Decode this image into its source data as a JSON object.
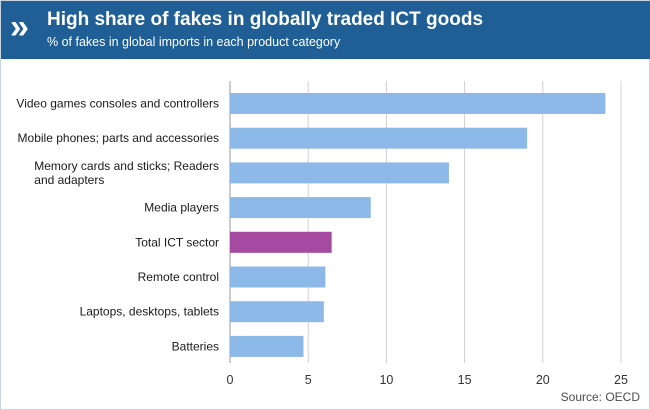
{
  "header": {
    "logo_glyph": "»",
    "title": "High share of fakes in globally traded ICT goods",
    "subtitle": "% of fakes in global imports in each product category"
  },
  "source": "Source: OECD",
  "colors": {
    "header_bg": "#1f5f96",
    "bar": "#8db9e8",
    "highlight_bar": "#a44aa0",
    "grid": "#d0d0d0"
  },
  "chart_data": {
    "type": "bar",
    "orientation": "horizontal",
    "categories": [
      "Video games consoles and controllers",
      "Mobile phones; parts and accessories",
      "Memory cards and sticks; Readers and adapters",
      "Media players",
      "Total ICT sector",
      "Remote control",
      "Laptops, desktops, tablets",
      "Batteries"
    ],
    "category_label_lines": [
      [
        "Video games consoles and controllers"
      ],
      [
        "Mobile phones; parts and accessories"
      ],
      [
        "Memory cards and sticks; Readers",
        "and adapters"
      ],
      [
        "Media players"
      ],
      [
        "Total ICT sector"
      ],
      [
        "Remote control"
      ],
      [
        "Laptops, desktops, tablets"
      ],
      [
        "Batteries"
      ]
    ],
    "values": [
      24,
      19,
      14,
      9,
      6.5,
      6.1,
      6.0,
      4.7
    ],
    "highlight": "Total ICT sector",
    "xlim": [
      0,
      25
    ],
    "xticks": [
      0,
      5,
      10,
      15,
      20,
      25
    ],
    "grid": true,
    "title": "",
    "xlabel": "",
    "ylabel": ""
  }
}
